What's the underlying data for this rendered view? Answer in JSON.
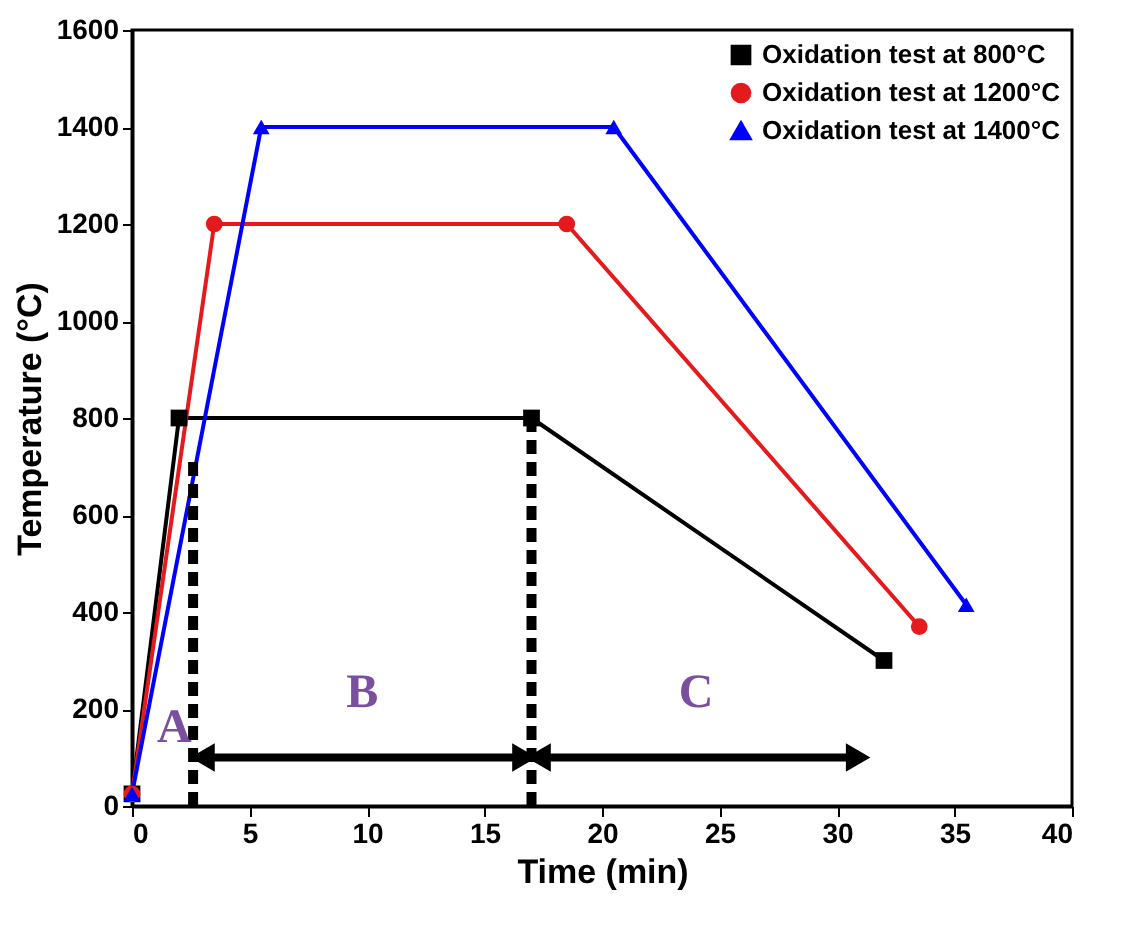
{
  "chart_data": {
    "type": "line",
    "xlabel": "Time (min)",
    "ylabel": "Temperature (°C)",
    "xlim": [
      0,
      40
    ],
    "xticks": [
      0,
      5,
      10,
      15,
      20,
      25,
      30,
      35,
      40
    ],
    "ylim": [
      0,
      1600
    ],
    "yticks": [
      0,
      200,
      400,
      600,
      800,
      1000,
      1200,
      1400,
      1600
    ],
    "grid": false,
    "legend": "top right",
    "series": [
      {
        "name": "Oxidation test at 800°C",
        "color": "#000000",
        "marker": "square",
        "x": [
          0,
          2,
          17,
          32
        ],
        "values": [
          25,
          800,
          800,
          300
        ]
      },
      {
        "name": "Oxidation test at 1200°C",
        "color": "#e41a1c",
        "marker": "circle",
        "x": [
          0,
          3.5,
          18.5,
          33.5
        ],
        "values": [
          25,
          1200,
          1200,
          370
        ]
      },
      {
        "name": "Oxidation test at 1400°C",
        "color": "#0000ff",
        "marker": "triangle",
        "x": [
          0,
          5.5,
          20.5,
          35.5
        ],
        "values": [
          25,
          1400,
          1400,
          415
        ]
      },
      {
        "color": "#000000",
        "marker": "none",
        "line_style": "dashed",
        "x": [
          2.6,
          2.6
        ],
        "values": [
          0,
          720
        ]
      },
      {
        "color": "#000000",
        "marker": "none",
        "line_style": "dashed",
        "x": [
          17,
          17
        ],
        "values": [
          0,
          800
        ]
      },
      {
        "color": "#000000",
        "marker": "triangle",
        "line_style": "solid",
        "x": [
          3,
          16.7
        ],
        "values": [
          100,
          100
        ]
      },
      {
        "color": "#000000",
        "marker": "triangle",
        "line_style": "solid",
        "x": [
          17.3,
          30.9
        ],
        "values": [
          100,
          100
        ]
      }
    ],
    "annotations": [
      "A",
      "B",
      "C"
    ]
  }
}
